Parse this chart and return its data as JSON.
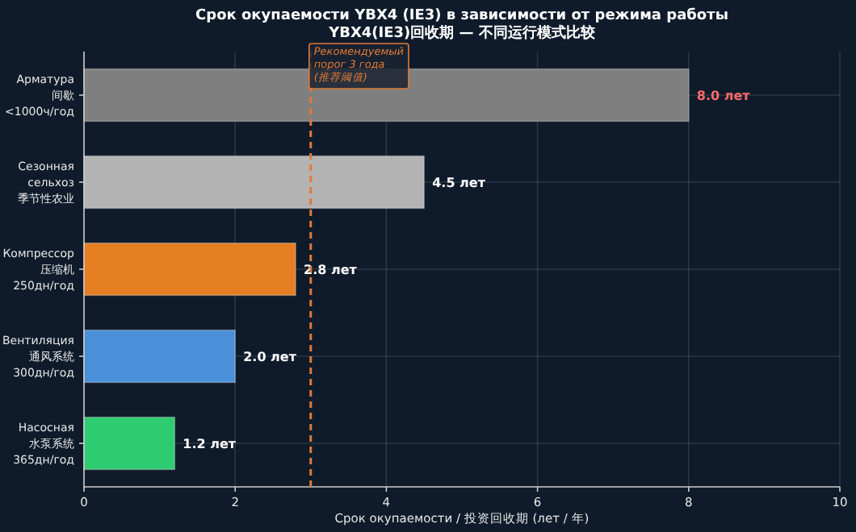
{
  "chart_data": {
    "type": "bar",
    "orientation": "horizontal",
    "title": "Срок окупаемости YBX4 (IE3) в зависимости от режима работы",
    "subtitle": "YBX4(IE3)回收期 — 不同运行模式比较",
    "xlabel": "Срок окупаемости / 投资回收期 (лет / 年)",
    "categories": [
      "Арматура\n间歇\n<1000ч/год",
      "Сезонная\nсельхоз\n季节性农业",
      "Компрессор\n压缩机\n250дн/год",
      "Вентиляция\n通风系统\n300дн/год",
      "Насосная\n水泵系统\n365дн/год"
    ],
    "values": [
      8.0,
      4.5,
      2.8,
      2.0,
      1.2
    ],
    "colors": [
      "#7f7f7f",
      "#b3b3b3",
      "#e67e22",
      "#4a90d9",
      "#2ecc71"
    ],
    "value_labels": [
      "8.0 лет",
      "4.5 лет",
      "2.8 лет",
      "2.0 лет",
      "1.2 лет"
    ],
    "xlim": [
      0,
      10
    ],
    "xticks": [
      0,
      2,
      4,
      6,
      8,
      10
    ],
    "grid": true,
    "ref_lines": [
      {
        "axis": "x",
        "value": 3,
        "label": "Рекомендуемый\nпорог 3 года\n(推荐阈值)",
        "color": "#e07b39",
        "line_style": "dashed"
      }
    ]
  }
}
